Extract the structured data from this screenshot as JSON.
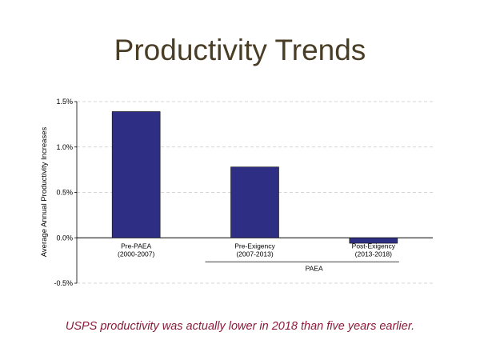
{
  "chart_data": {
    "type": "bar",
    "title": "Productivity Trends",
    "ylabel": "Average Annual Productivity Increases",
    "xlabel": "",
    "categories": [
      [
        "Pre-PAEA",
        "(2000-2007)"
      ],
      [
        "Pre-Exigency",
        "(2007-2013)"
      ],
      [
        "Post-Exigency",
        "(2013-2018)"
      ]
    ],
    "values": [
      1.39,
      0.78,
      -0.06
    ],
    "ylim": [
      -0.5,
      1.5
    ],
    "yticks": [
      {
        "value": 1.5,
        "label": "1.5%"
      },
      {
        "value": 1.0,
        "label": "1.0%"
      },
      {
        "value": 0.5,
        "label": "0.5%"
      },
      {
        "value": 0.0,
        "label": "0.0%"
      },
      {
        "value": -0.5,
        "label": "-0.5%"
      }
    ],
    "group_label": "PAEA",
    "bar_color": "#2e2e85",
    "grid": true
  },
  "caption": "USPS productivity was actually lower in 2018 than five years earlier."
}
